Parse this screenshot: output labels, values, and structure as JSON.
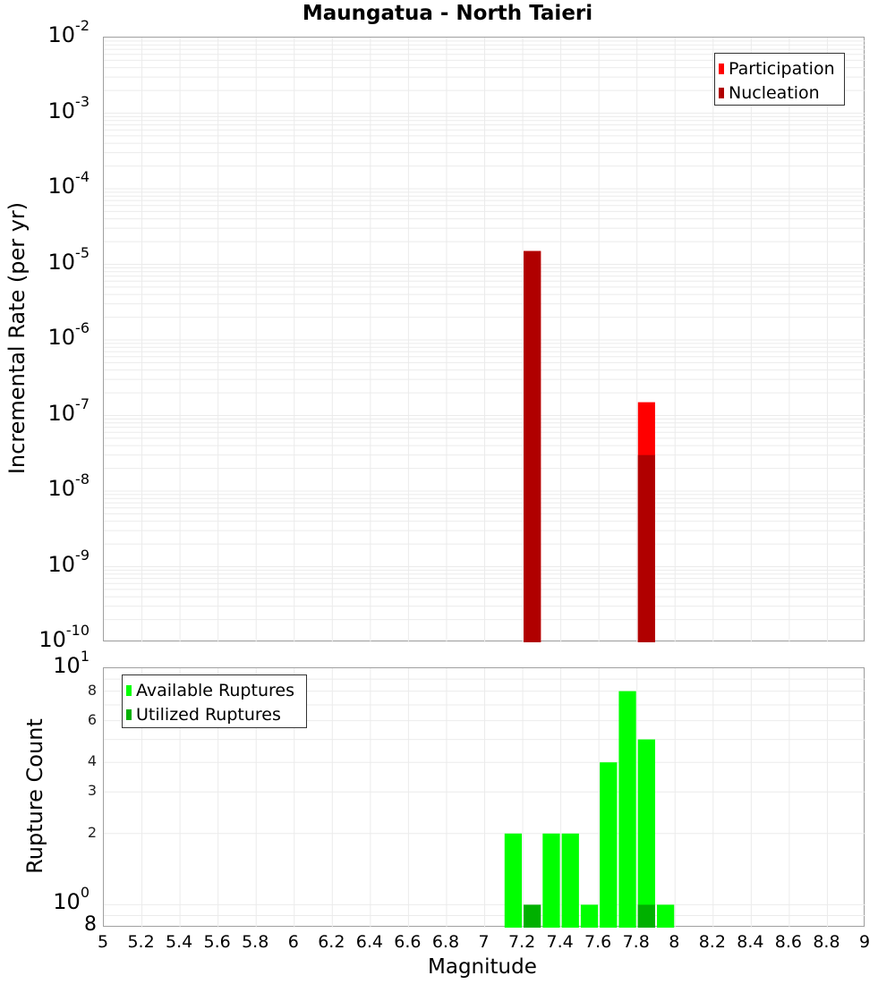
{
  "title": "Maungatua - North Taieri",
  "top_plot": {
    "ylabel": "Incremental Rate (per yr)",
    "yticks": [
      {
        "base": "10",
        "exp": "-2"
      },
      {
        "base": "10",
        "exp": "-3"
      },
      {
        "base": "10",
        "exp": "-4"
      },
      {
        "base": "10",
        "exp": "-5"
      },
      {
        "base": "10",
        "exp": "-6"
      },
      {
        "base": "10",
        "exp": "-7"
      },
      {
        "base": "10",
        "exp": "-8"
      },
      {
        "base": "10",
        "exp": "-9"
      },
      {
        "base": "10",
        "exp": "-10"
      }
    ],
    "legend": [
      {
        "label": "Participation",
        "color": "#ff0000"
      },
      {
        "label": "Nucleation",
        "color": "#b00000"
      }
    ]
  },
  "bottom_plot": {
    "ylabel": "Rupture Count",
    "ytick_major": [
      {
        "base": "10",
        "exp": "1"
      },
      {
        "base": "10",
        "exp": "0"
      }
    ],
    "ytick_minor": [
      "8",
      "6",
      "4",
      "3",
      "2"
    ],
    "ytick_bottom": "8",
    "legend": [
      {
        "label": "Available Ruptures",
        "color": "#00ff00"
      },
      {
        "label": "Utilized Ruptures",
        "color": "#00b000"
      }
    ]
  },
  "xlabel": "Magnitude",
  "xticks": [
    "5",
    "5.2",
    "5.4",
    "5.6",
    "5.8",
    "6",
    "6.2",
    "6.4",
    "6.6",
    "6.8",
    "7",
    "7.2",
    "7.4",
    "7.6",
    "7.8",
    "8",
    "8.2",
    "8.4",
    "8.6",
    "8.8",
    "9"
  ],
  "chart_data": [
    {
      "type": "bar",
      "title": "Maungatua - North Taieri",
      "xlabel": "Magnitude",
      "ylabel": "Incremental Rate (per yr)",
      "yscale": "log",
      "ylim": [
        1e-10,
        0.01
      ],
      "xlim": [
        5,
        9
      ],
      "legend_position": "top-right",
      "grid": true,
      "x": [
        7.25,
        7.85
      ],
      "series": [
        {
          "name": "Participation",
          "color": "#ff0000",
          "values": [
            1.5e-05,
            1.5e-07
          ]
        },
        {
          "name": "Nucleation",
          "color": "#b00000",
          "values": [
            1.5e-05,
            3e-08
          ]
        }
      ]
    },
    {
      "type": "bar",
      "xlabel": "Magnitude",
      "ylabel": "Rupture Count",
      "yscale": "log",
      "ylim": [
        0.8,
        10
      ],
      "xlim": [
        5,
        9
      ],
      "legend_position": "top-left",
      "grid": true,
      "x": [
        7.15,
        7.25,
        7.35,
        7.45,
        7.55,
        7.65,
        7.75,
        7.85,
        7.95
      ],
      "series": [
        {
          "name": "Available Ruptures",
          "color": "#00ff00",
          "values": [
            2,
            0,
            2,
            2,
            1,
            4,
            8,
            5,
            1
          ]
        },
        {
          "name": "Utilized Ruptures",
          "color": "#00b000",
          "values": [
            0,
            1,
            0,
            0,
            0,
            0,
            0,
            1,
            0
          ]
        }
      ]
    }
  ]
}
